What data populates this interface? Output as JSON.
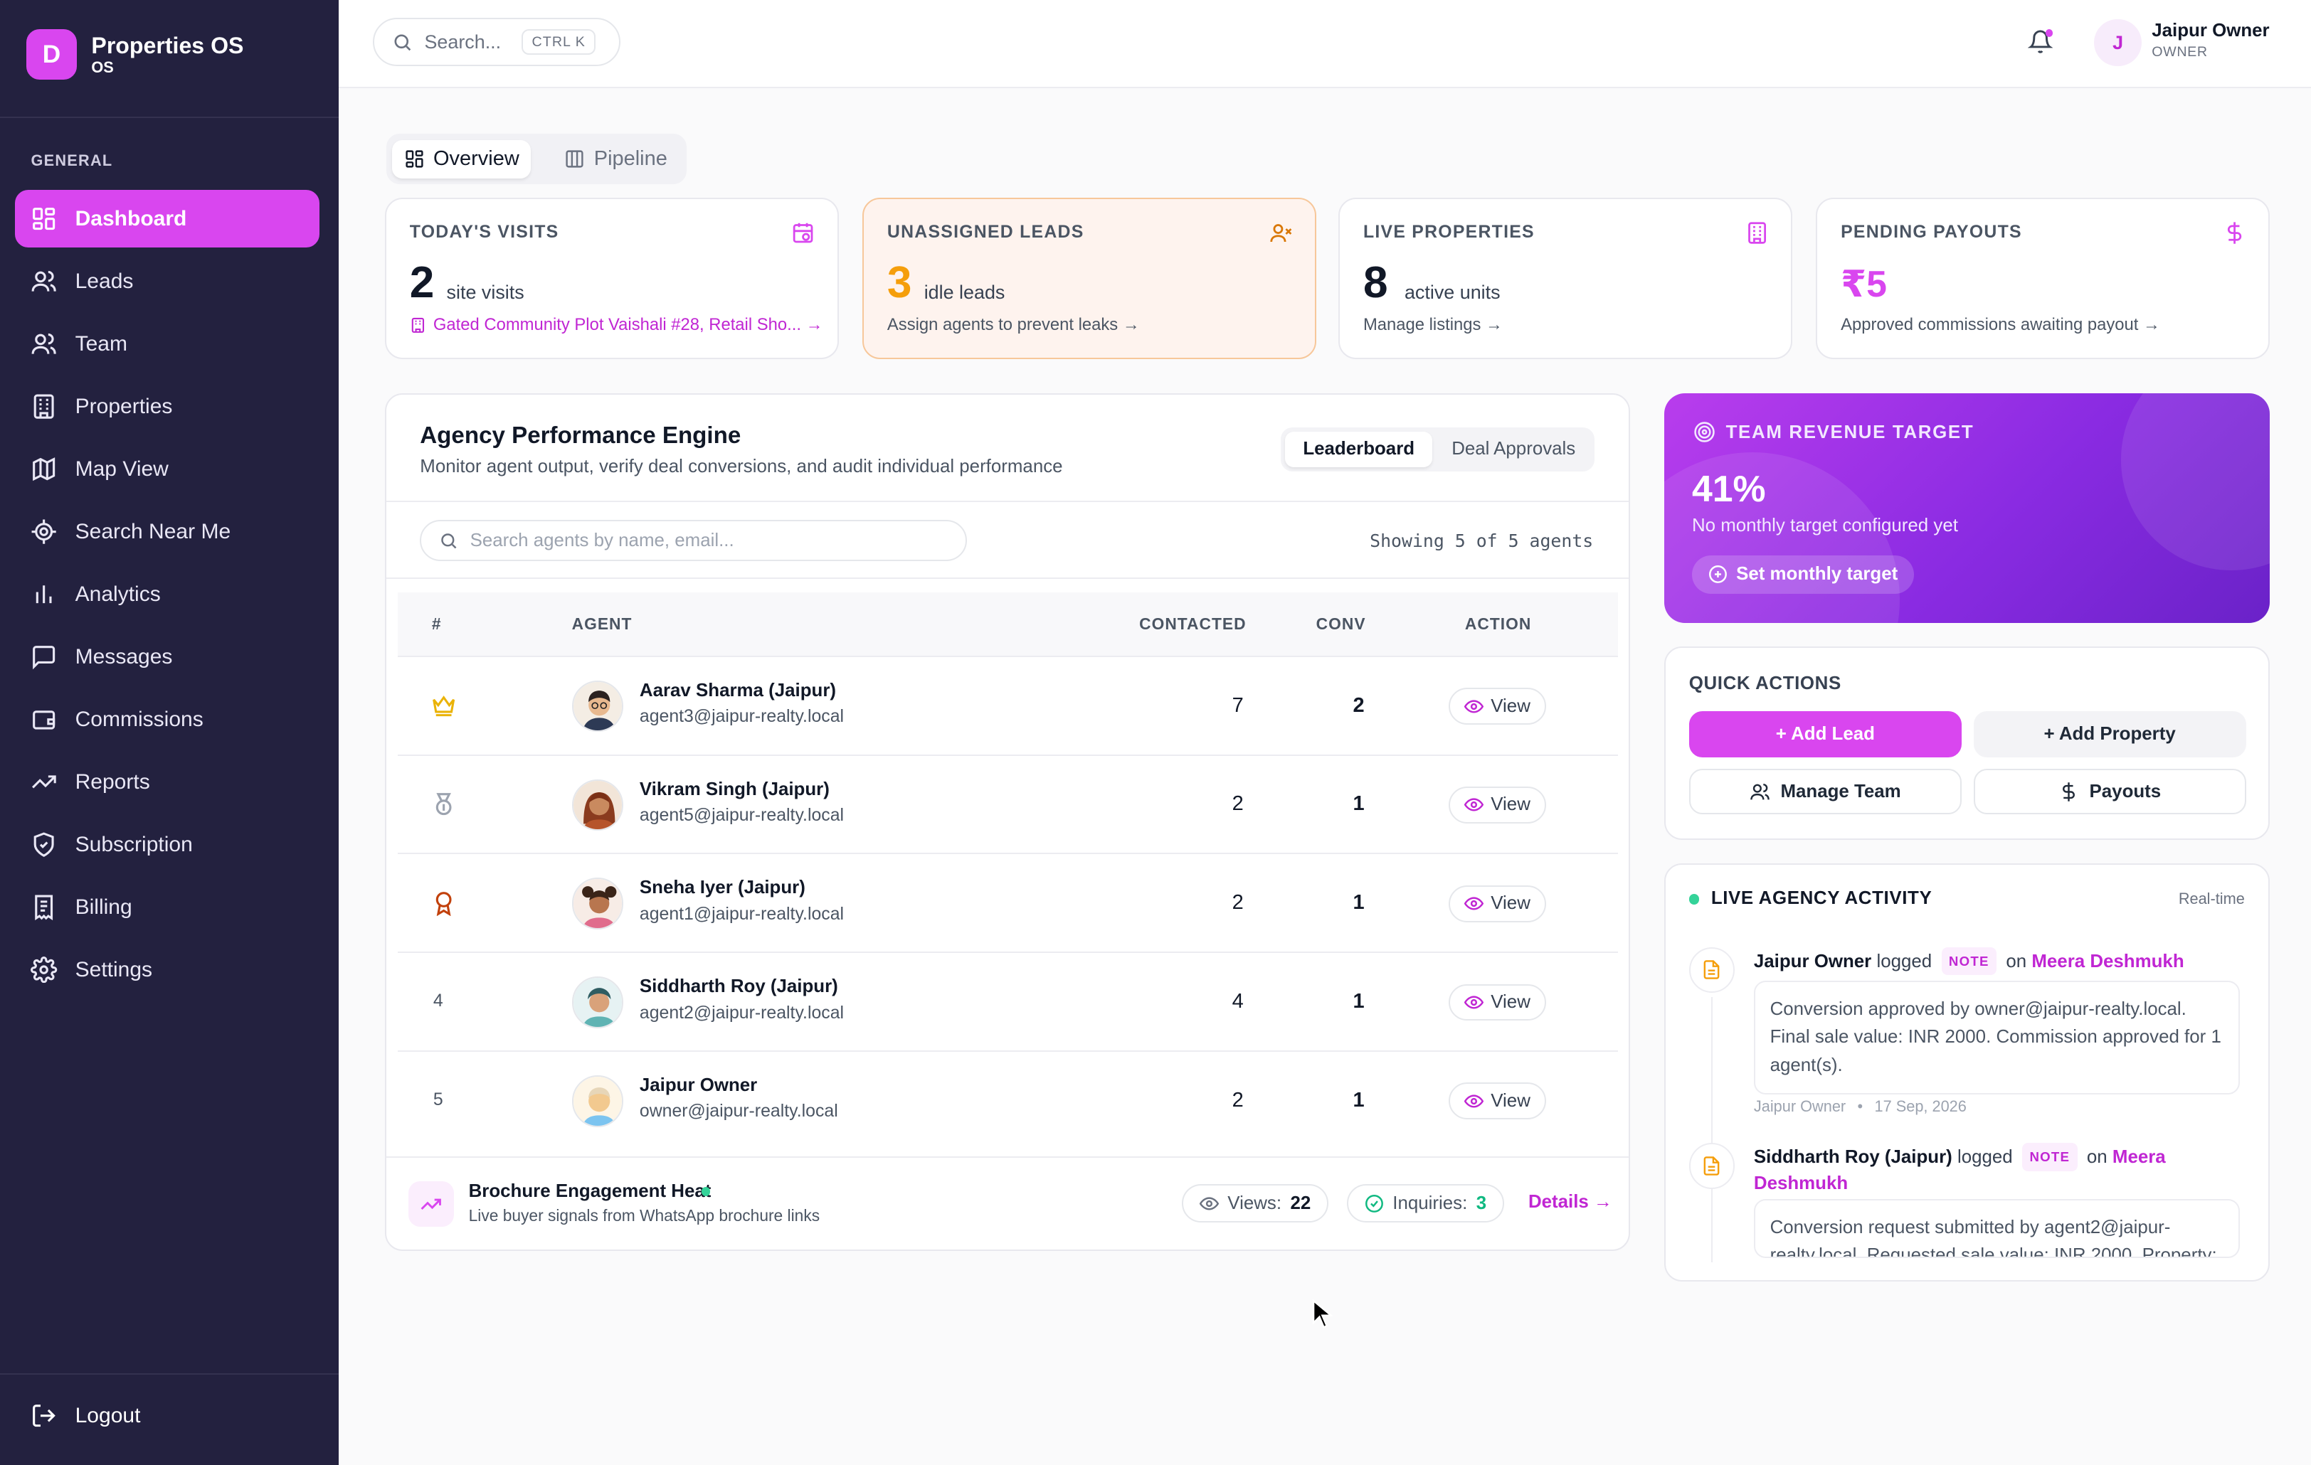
{
  "brand": {
    "logo_letter": "D",
    "name": "Properties OS",
    "sub": "OS",
    "accent": "#d946ef"
  },
  "sidebar": {
    "section": "GENERAL",
    "items": [
      {
        "label": "Dashboard",
        "icon": "grid-icon"
      },
      {
        "label": "Leads",
        "icon": "users-icon"
      },
      {
        "label": "Team",
        "icon": "team-icon"
      },
      {
        "label": "Properties",
        "icon": "building-icon"
      },
      {
        "label": "Map View",
        "icon": "map-icon"
      },
      {
        "label": "Search Near Me",
        "icon": "locate-icon"
      },
      {
        "label": "Analytics",
        "icon": "bar-chart-icon"
      },
      {
        "label": "Messages",
        "icon": "message-icon"
      },
      {
        "label": "Commissions",
        "icon": "wallet-icon"
      },
      {
        "label": "Reports",
        "icon": "trending-up-icon"
      },
      {
        "label": "Subscription",
        "icon": "shield-icon"
      },
      {
        "label": "Billing",
        "icon": "receipt-icon"
      },
      {
        "label": "Settings",
        "icon": "gear-icon"
      }
    ],
    "logout": "Logout"
  },
  "topbar": {
    "search_placeholder": "Search...",
    "shortcut": "CTRL K",
    "user_initial": "J",
    "user_name": "Jaipur Owner",
    "user_role": "OWNER"
  },
  "tabs": {
    "overview": "Overview",
    "pipeline": "Pipeline"
  },
  "stats": {
    "visits": {
      "label": "TODAY'S VISITS",
      "value": "2",
      "unit": "site visits",
      "foot": "Gated Community Plot Vaishali #28, Retail Sho... →"
    },
    "leads": {
      "label": "UNASSIGNED LEADS",
      "value": "3",
      "unit": "idle leads",
      "foot": "Assign agents to prevent leaks →"
    },
    "properties": {
      "label": "LIVE PROPERTIES",
      "value": "8",
      "unit": "active units",
      "foot": "Manage listings →"
    },
    "payouts": {
      "label": "PENDING PAYOUTS",
      "value": "₹5",
      "foot": "Approved commissions awaiting payout →"
    }
  },
  "performance": {
    "title": "Agency Performance Engine",
    "subtitle": "Monitor agent output, verify deal conversions, and audit individual performance",
    "seg_leaderboard": "Leaderboard",
    "seg_approvals": "Deal Approvals",
    "search_placeholder": "Search agents by name, email...",
    "showing": "Showing 5 of 5 agents",
    "columns": {
      "rank": "#",
      "agent": "AGENT",
      "contacted": "CONTACTED",
      "conv": "CONV",
      "action": "ACTION"
    },
    "rows": [
      {
        "rank": "1",
        "rank_icon": "crown-icon",
        "name": "Aarav Sharma (Jaipur)",
        "email": "agent3@jaipur-realty.local",
        "contacted": "7",
        "conv": "2",
        "action": "View"
      },
      {
        "rank": "2",
        "rank_icon": "medal-icon",
        "name": "Vikram Singh (Jaipur)",
        "email": "agent5@jaipur-realty.local",
        "contacted": "2",
        "conv": "1",
        "action": "View"
      },
      {
        "rank": "3",
        "rank_icon": "award-icon",
        "name": "Sneha Iyer (Jaipur)",
        "email": "agent1@jaipur-realty.local",
        "contacted": "2",
        "conv": "1",
        "action": "View"
      },
      {
        "rank": "4",
        "name": "Siddharth Roy (Jaipur)",
        "email": "agent2@jaipur-realty.local",
        "contacted": "4",
        "conv": "1",
        "action": "View"
      },
      {
        "rank": "5",
        "name": "Jaipur Owner",
        "email": "owner@jaipur-realty.local",
        "contacted": "2",
        "conv": "1",
        "action": "View"
      }
    ],
    "heat": {
      "title": "Brochure Engagement Heat",
      "sub": "Live buyer signals from WhatsApp brochure links",
      "views_label": "Views:",
      "views": "22",
      "inquiries_label": "Inquiries:",
      "inquiries": "3",
      "details": "Details →"
    }
  },
  "revenue": {
    "title": "TEAM REVENUE TARGET",
    "percent": "41%",
    "note": "No monthly target configured yet",
    "button": "Set monthly target"
  },
  "quick_actions": {
    "title": "QUICK ACTIONS",
    "add_lead": "+ Add Lead",
    "add_property": "+ Add Property",
    "manage_team": "Manage Team",
    "payouts": "Payouts"
  },
  "activity": {
    "title": "LIVE AGENCY ACTIVITY",
    "realtime": "Real-time",
    "items": [
      {
        "actor": "Jaipur Owner",
        "verb": "logged",
        "tag": "NOTE",
        "prep": "on",
        "target": "Meera Deshmukh",
        "body": "Conversion approved by owner@jaipur-realty.local. Final sale value: INR 2000. Commission approved for 1 agent(s).",
        "meta_actor": "Jaipur Owner",
        "meta_date": "17 Sep, 2026"
      },
      {
        "actor": "Siddharth Roy (Jaipur)",
        "verb": "logged",
        "tag": "NOTE",
        "prep": "on",
        "target": "Meera Deshmukh",
        "body": "Conversion request submitted by agent2@jaipur-realty.local. Requested sale value: INR 2000. Property:"
      }
    ]
  }
}
